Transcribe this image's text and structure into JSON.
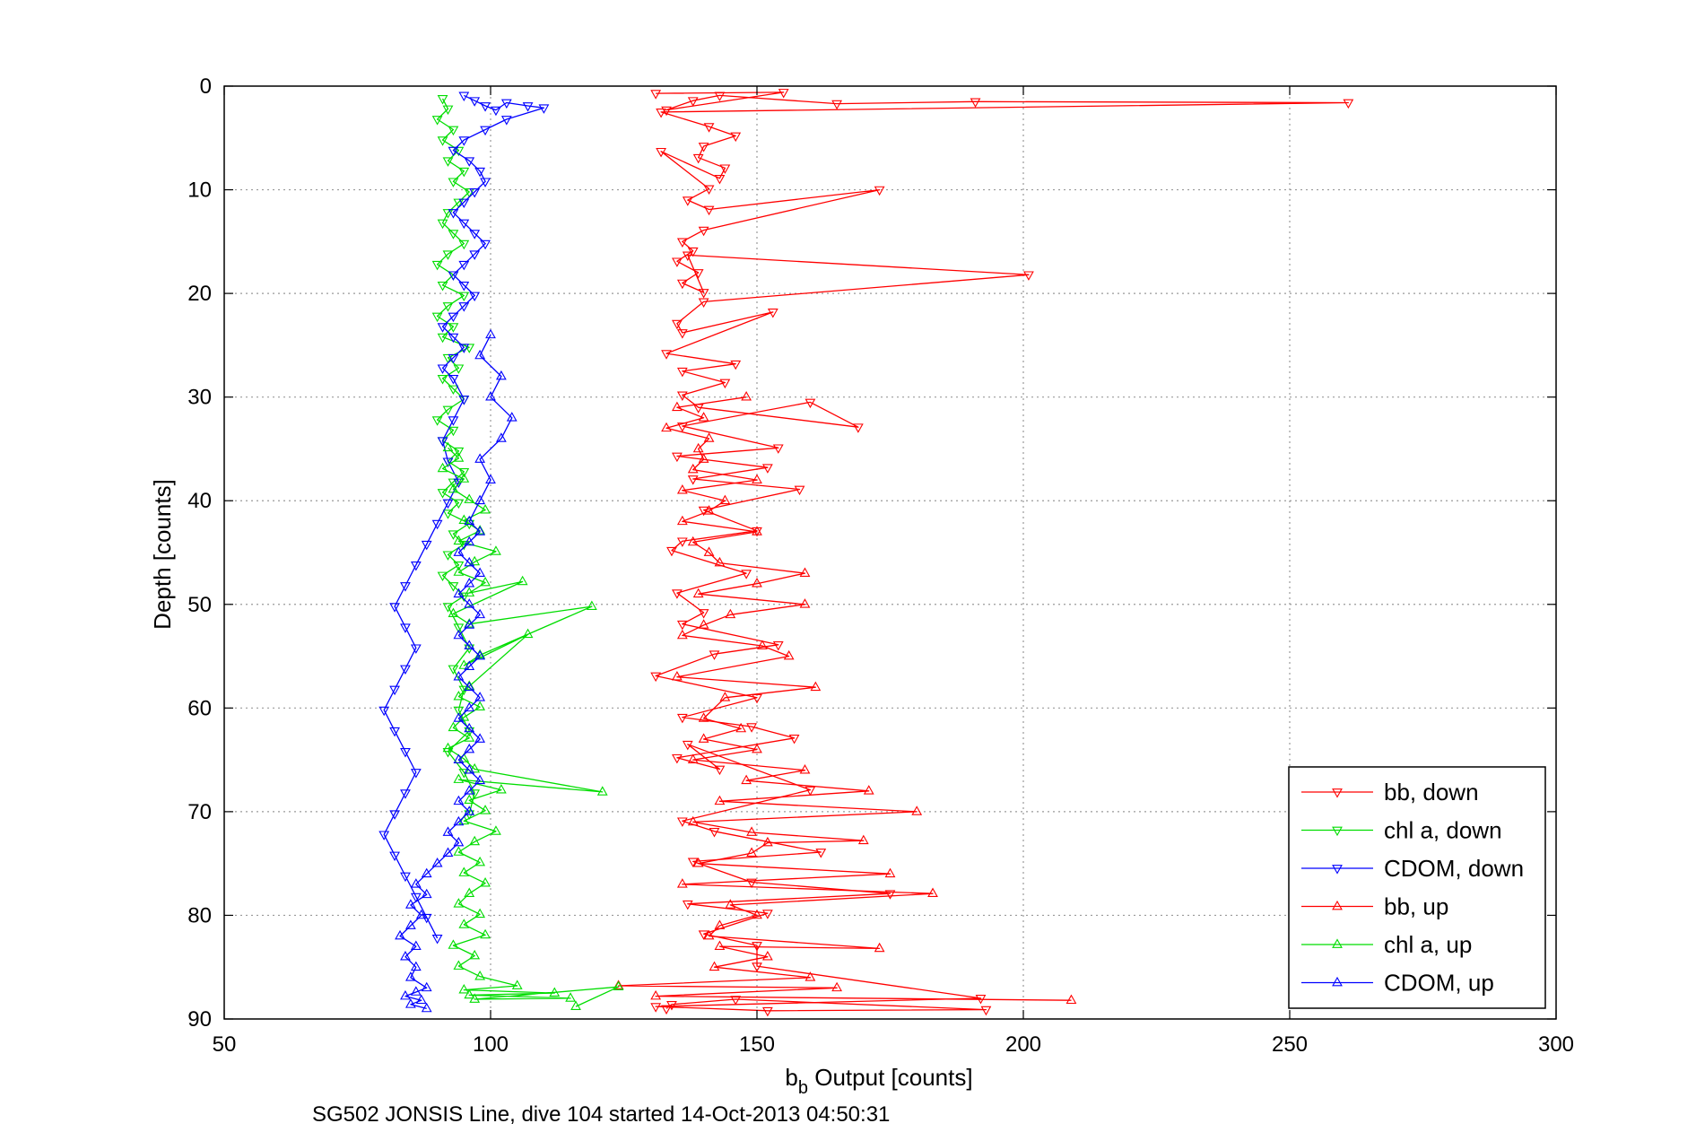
{
  "chart_data": {
    "type": "line",
    "title": "",
    "caption": "SG502 JONSIS Line, dive 104 started 14-Oct-2013 04:50:31",
    "xlabel": {
      "base": "b",
      "subscript": "b",
      "rest": " Output [counts]"
    },
    "ylabel": "Depth [counts]",
    "xlim": [
      50,
      300
    ],
    "ylim": [
      0,
      90
    ],
    "y_reversed": true,
    "xticks": [
      "50",
      "100",
      "150",
      "200",
      "250",
      "300"
    ],
    "yticks": [
      "0",
      "10",
      "20",
      "30",
      "40",
      "50",
      "60",
      "70",
      "80",
      "90"
    ],
    "grid": true,
    "legend_position": "bottom-right",
    "colors": {
      "bb": "#ff0000",
      "chl": "#00dd00",
      "cdom": "#0000ff",
      "grid": "#999999"
    },
    "series": [
      {
        "name": "bb, down",
        "color": "#ff0000",
        "marker": "triangle-down",
        "x": [
          131,
          155,
          133,
          138,
          143,
          165,
          191,
          261,
          132,
          141,
          146,
          140,
          139,
          144,
          143,
          132,
          141,
          137,
          141,
          173,
          140,
          136,
          138,
          135,
          139,
          136,
          140,
          137,
          201,
          140,
          135,
          136,
          153,
          133,
          146,
          136,
          144,
          136,
          139,
          169,
          160,
          136,
          154,
          135,
          152,
          138,
          158,
          140,
          150,
          136,
          134,
          148,
          135,
          140,
          136,
          154,
          142,
          131,
          150,
          136,
          149,
          157,
          135,
          143,
          137,
          160,
          136,
          142,
          162,
          138,
          149,
          175,
          137,
          152,
          140,
          150,
          150,
          192,
          131,
          152,
          193,
          146,
          134,
          133
        ],
        "y": [
          0.7,
          0.6,
          2.3,
          1.4,
          0.9,
          1.7,
          1.5,
          1.6,
          2.5,
          3.9,
          4.8,
          5.8,
          6.9,
          7.9,
          8.9,
          6.3,
          9.9,
          11.0,
          11.9,
          10.0,
          13.9,
          15.0,
          15.9,
          16.9,
          18.0,
          19.0,
          19.9,
          16.3,
          18.2,
          20.8,
          22.9,
          23.8,
          21.8,
          25.8,
          26.8,
          27.5,
          28.6,
          29.8,
          31.0,
          32.9,
          30.5,
          32.8,
          34.9,
          35.7,
          36.8,
          37.9,
          38.9,
          40.9,
          42.9,
          43.9,
          44.8,
          47.0,
          48.9,
          50.8,
          51.9,
          53.9,
          54.8,
          56.9,
          59.0,
          60.9,
          61.8,
          62.9,
          64.8,
          65.9,
          63.5,
          67.9,
          70.9,
          71.9,
          73.9,
          74.8,
          76.8,
          77.9,
          78.9,
          79.8,
          81.8,
          82.9,
          84.9,
          88.0,
          88.8,
          89.2,
          89.1,
          88.1,
          88.6,
          89.0
        ]
      },
      {
        "name": "chl a, down",
        "color": "#00dd00",
        "marker": "triangle-down",
        "x": [
          91,
          92,
          90,
          93,
          91,
          94,
          92,
          95,
          93,
          96,
          94,
          92,
          91,
          93,
          95,
          92,
          90,
          93,
          91,
          95,
          92,
          90,
          93,
          91,
          96,
          92,
          94,
          91,
          93,
          95,
          92,
          90,
          93,
          91,
          94,
          92,
          95,
          93,
          91,
          94,
          92,
          96,
          93,
          95,
          92,
          94,
          91,
          93,
          95,
          92,
          94,
          96,
          93,
          95,
          94,
          96,
          92,
          95,
          97,
          96
        ],
        "y": [
          1.2,
          2.2,
          3.2,
          4.2,
          5.2,
          6.2,
          7.2,
          8.2,
          9.2,
          10.2,
          11.2,
          12.2,
          13.2,
          14.2,
          15.2,
          16.2,
          17.2,
          18.2,
          19.2,
          20.2,
          21.2,
          22.2,
          23.2,
          24.2,
          25.2,
          26.2,
          27.2,
          28.2,
          29.2,
          30.2,
          31.2,
          32.2,
          33.2,
          34.2,
          35.2,
          36.2,
          37.2,
          38.2,
          39.2,
          40.2,
          41.2,
          42.2,
          43.2,
          44.2,
          45.2,
          46.2,
          47.2,
          48.2,
          49.2,
          50.2,
          52.2,
          54.2,
          56.2,
          58.2,
          60.2,
          62.2,
          64.2,
          66.2,
          68.2,
          70.2
        ]
      },
      {
        "name": "CDOM, down",
        "color": "#0000ff",
        "marker": "triangle-down",
        "x": [
          95,
          97,
          99,
          101,
          103,
          107,
          110,
          103,
          99,
          95,
          93,
          96,
          98,
          99,
          97,
          95,
          93,
          95,
          97,
          99,
          97,
          95,
          93,
          95,
          97,
          95,
          93,
          91,
          93,
          95,
          93,
          91,
          93,
          95,
          93,
          91,
          92,
          94,
          92,
          90,
          88,
          86,
          84,
          82,
          84,
          86,
          84,
          82,
          80,
          82,
          84,
          86,
          84,
          82,
          80,
          82,
          84,
          86,
          88,
          90
        ],
        "y": [
          0.9,
          1.4,
          1.9,
          2.3,
          1.6,
          1.9,
          2.1,
          3.2,
          4.2,
          5.2,
          6.2,
          7.2,
          8.2,
          9.2,
          10.2,
          11.2,
          12.2,
          13.2,
          14.2,
          15.2,
          16.2,
          17.2,
          18.2,
          19.2,
          20.2,
          21.2,
          22.2,
          23.2,
          24.2,
          25.2,
          26.2,
          27.2,
          28.2,
          30.2,
          32.2,
          34.2,
          36.2,
          38.2,
          40.2,
          42.2,
          44.2,
          46.2,
          48.2,
          50.2,
          52.2,
          54.2,
          56.2,
          58.2,
          60.2,
          62.2,
          64.2,
          66.2,
          68.2,
          70.2,
          72.2,
          74.2,
          76.2,
          78.2,
          80.2,
          82.2
        ]
      },
      {
        "name": "bb, up",
        "color": "#ff0000",
        "marker": "triangle-up",
        "x": [
          209,
          131,
          165,
          124,
          160,
          142,
          152,
          143,
          173,
          141,
          143,
          150,
          145,
          183,
          136,
          175,
          139,
          149,
          152,
          170,
          149,
          138,
          180,
          143,
          171,
          148,
          159,
          138,
          150,
          140,
          147,
          140,
          144,
          161,
          135,
          156,
          151,
          136,
          140,
          145,
          159,
          139,
          150,
          159,
          143,
          141,
          138,
          150,
          136,
          141,
          144,
          136,
          150,
          138,
          140,
          139,
          141,
          133,
          140,
          135,
          148
        ],
        "y": [
          88.2,
          87.8,
          87.0,
          86.8,
          86.0,
          85.0,
          84.0,
          83.0,
          83.2,
          82.0,
          81.0,
          80.0,
          79.0,
          77.9,
          77.0,
          76.0,
          75.0,
          74.0,
          73.0,
          72.8,
          72.0,
          71.0,
          70.0,
          69.0,
          68.0,
          67.0,
          66.0,
          65.0,
          64.0,
          63.0,
          62.0,
          61.0,
          59.0,
          58.0,
          57.0,
          55.0,
          54.0,
          53.0,
          52.0,
          51.0,
          50.0,
          49.0,
          48.0,
          47.0,
          46.0,
          45.0,
          44.0,
          43.0,
          42.0,
          41.0,
          40.0,
          39.0,
          38.0,
          37.0,
          36.0,
          35.0,
          34.0,
          33.0,
          32.0,
          31.0,
          30.0
        ]
      },
      {
        "name": "chl a, up",
        "color": "#00dd00",
        "marker": "triangle-up",
        "x": [
          116,
          124,
          97,
          115,
          96,
          112,
          95,
          105,
          98,
          94,
          97,
          93,
          99,
          95,
          98,
          94,
          96,
          99,
          95,
          98,
          94,
          97,
          101,
          95,
          99,
          96,
          102,
          94,
          121,
          97,
          95,
          92,
          96,
          93,
          95,
          98,
          94,
          96,
          107,
          95,
          98,
          119,
          96,
          93,
          106,
          96,
          99,
          94,
          97,
          101,
          94,
          98,
          95,
          99,
          96,
          93,
          95,
          91,
          94,
          92
        ],
        "y": [
          88.8,
          86.9,
          88.1,
          88.0,
          87.7,
          87.5,
          87.2,
          86.8,
          85.9,
          84.9,
          83.9,
          82.9,
          81.9,
          80.9,
          79.9,
          78.9,
          77.9,
          76.9,
          75.9,
          74.9,
          73.9,
          72.9,
          71.9,
          70.9,
          69.9,
          68.9,
          67.9,
          66.9,
          68.1,
          65.9,
          64.9,
          63.9,
          62.9,
          61.9,
          60.9,
          59.9,
          58.9,
          57.9,
          52.9,
          55.9,
          54.9,
          50.2,
          51.9,
          50.9,
          47.8,
          48.9,
          47.9,
          46.9,
          45.9,
          44.9,
          43.9,
          42.9,
          41.9,
          40.9,
          39.9,
          38.9,
          37.9,
          36.9,
          35.9,
          34.9
        ]
      },
      {
        "name": "CDOM, up",
        "color": "#0000ff",
        "marker": "triangle-up",
        "x": [
          88,
          85,
          87,
          84,
          86,
          88,
          85,
          86,
          84,
          86,
          83,
          85,
          87,
          85,
          88,
          86,
          88,
          90,
          92,
          94,
          92,
          94,
          96,
          94,
          96,
          98,
          96,
          94,
          96,
          98,
          96,
          94,
          96,
          98,
          96,
          94,
          96,
          98,
          96,
          94,
          96,
          98,
          96,
          94,
          96,
          98,
          96,
          94,
          96,
          98,
          96,
          98,
          100,
          98,
          102,
          104,
          100,
          102,
          98,
          100
        ],
        "y": [
          89.0,
          88.6,
          88.2,
          87.8,
          87.4,
          87.0,
          86.0,
          85.0,
          84.0,
          83.0,
          82.0,
          81.0,
          80.0,
          79.0,
          78.0,
          77.0,
          76.0,
          75.0,
          74.0,
          73.0,
          72.0,
          71.0,
          70.0,
          69.0,
          68.0,
          67.0,
          66.0,
          65.0,
          64.0,
          63.0,
          62.0,
          61.0,
          60.0,
          59.0,
          58.0,
          57.0,
          56.0,
          55.0,
          54.0,
          53.0,
          52.0,
          51.0,
          50.0,
          49.0,
          48.0,
          47.0,
          46.0,
          45.0,
          44.0,
          43.0,
          42.0,
          40.0,
          38.0,
          36.0,
          34.0,
          32.0,
          30.0,
          28.0,
          26.0,
          24.0
        ]
      }
    ]
  }
}
